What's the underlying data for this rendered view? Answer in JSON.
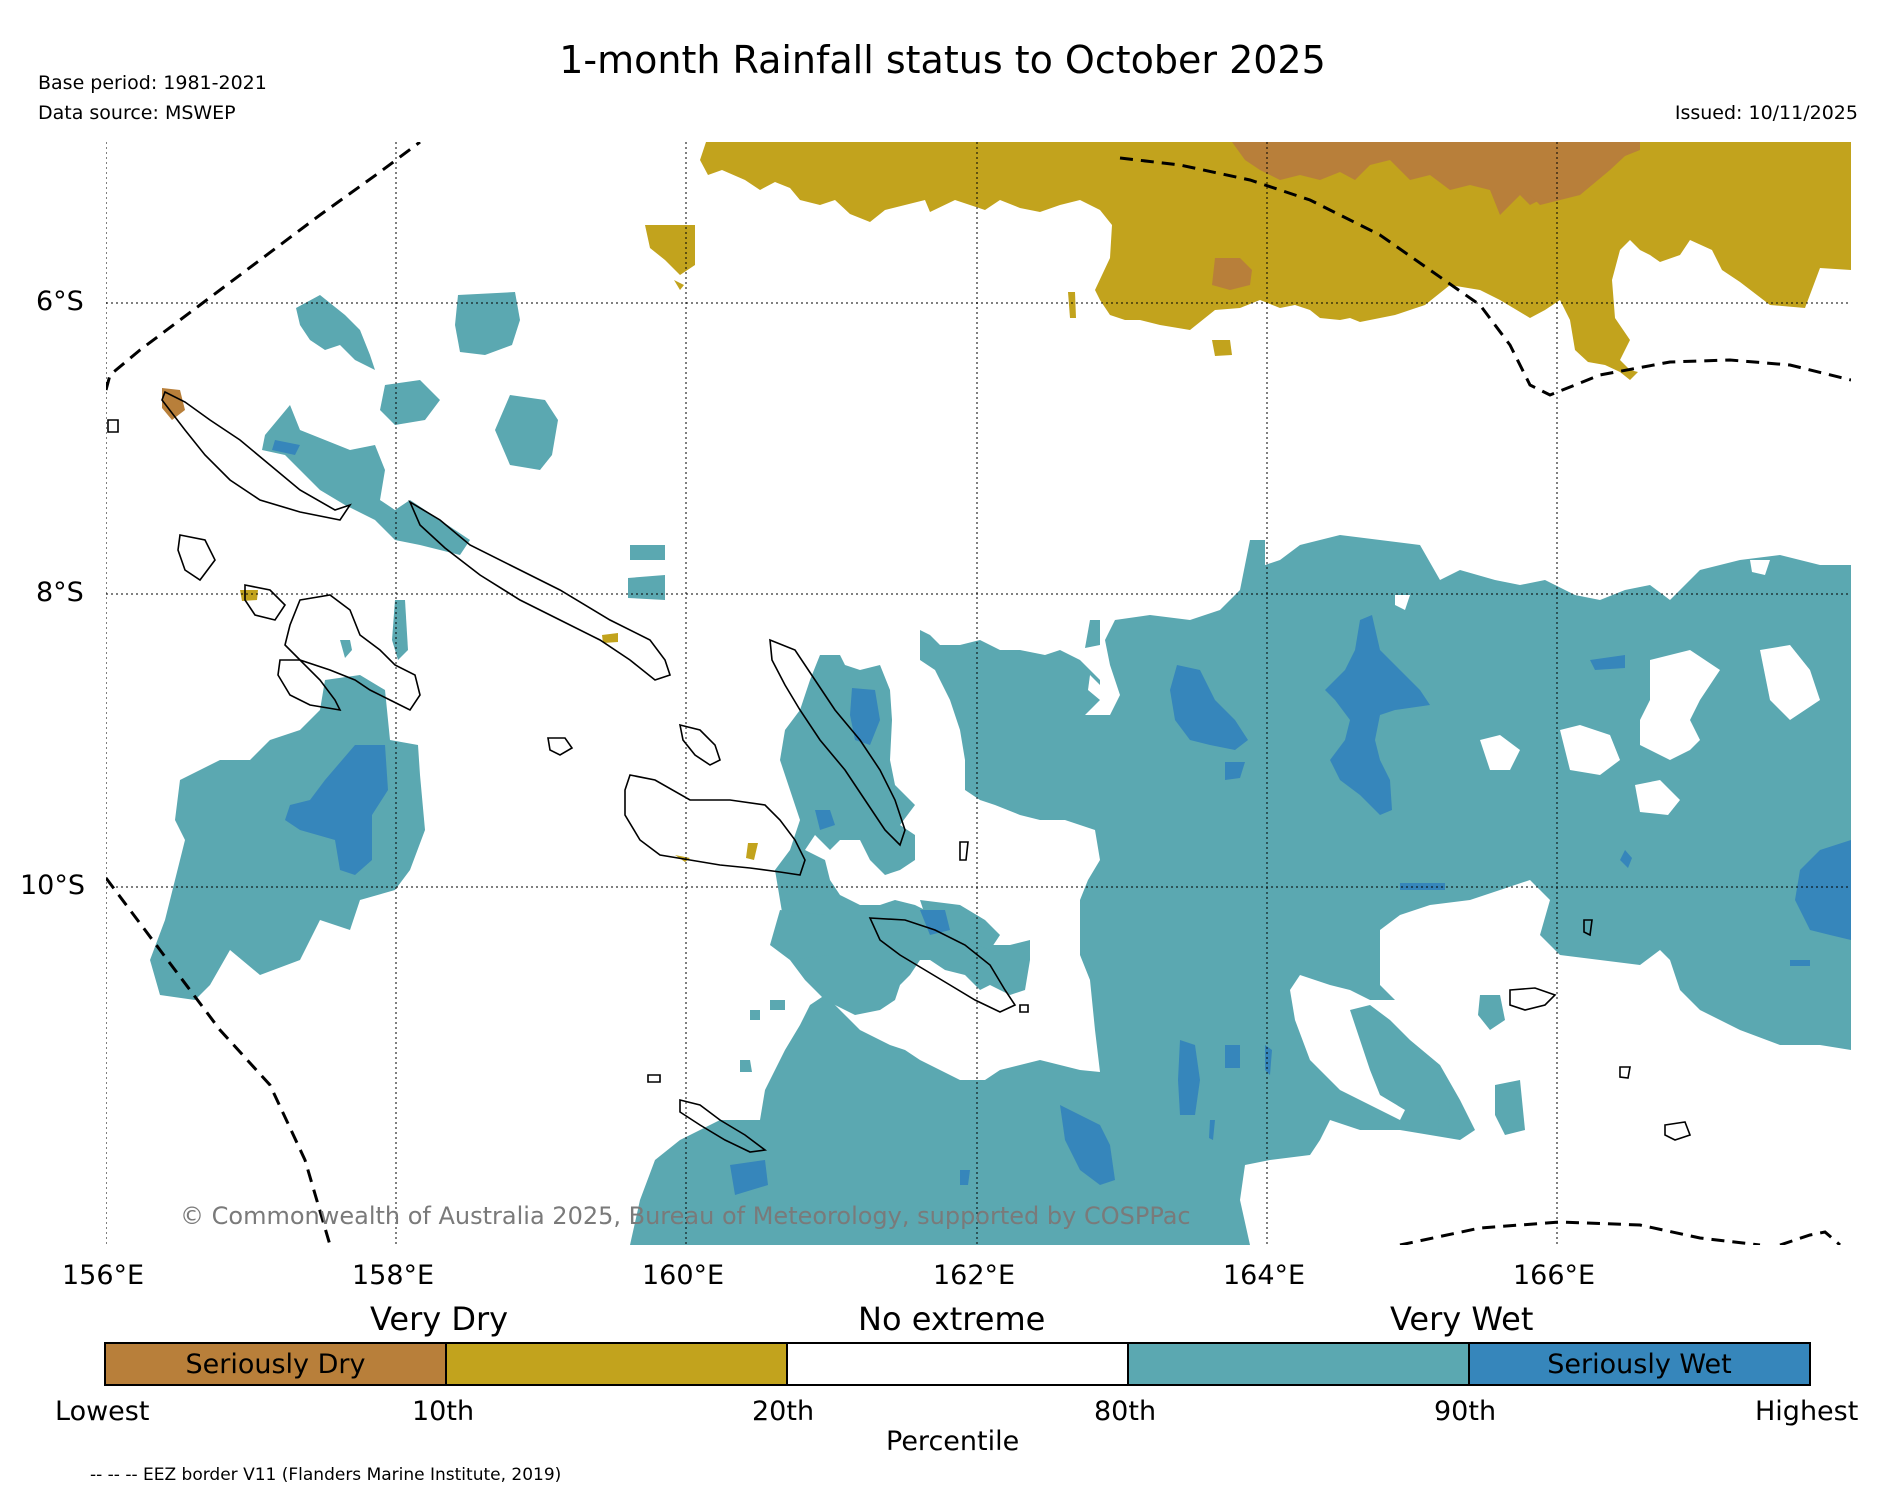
{
  "title": "1-month Rainfall status to October 2025",
  "base_period": "Base period: 1981-2021",
  "data_source": "Data source: MSWEP",
  "issued": "Issued: 10/11/2025",
  "copyright": "© Commonwealth of Australia 2025, Bureau of Meteorology, supported by COSPPac",
  "lat_labels": [
    "6°S",
    "8°S",
    "10°S"
  ],
  "lon_labels": [
    "156°E",
    "158°E",
    "160°E",
    "162°E",
    "164°E",
    "166°E"
  ],
  "legend": {
    "band_labels": [
      "Very Dry",
      "No extreme",
      "Very Wet"
    ],
    "category_labels": [
      "Seriously Dry",
      "",
      "",
      "",
      "Seriously Wet"
    ],
    "percentile_labels": [
      "Lowest",
      "10th",
      "20th",
      "80th",
      "90th",
      "Highest"
    ],
    "axis_label": "Percentile",
    "colors": {
      "seriously_dry": "#b87f3a",
      "very_dry": "#c2a31d",
      "no_extreme": "#ffffff",
      "very_wet": "#5ba8b1",
      "seriously_wet": "#3686bb"
    }
  },
  "eez_note": "-- -- -- EEZ border V11 (Flanders Marine Institute, 2019)"
}
